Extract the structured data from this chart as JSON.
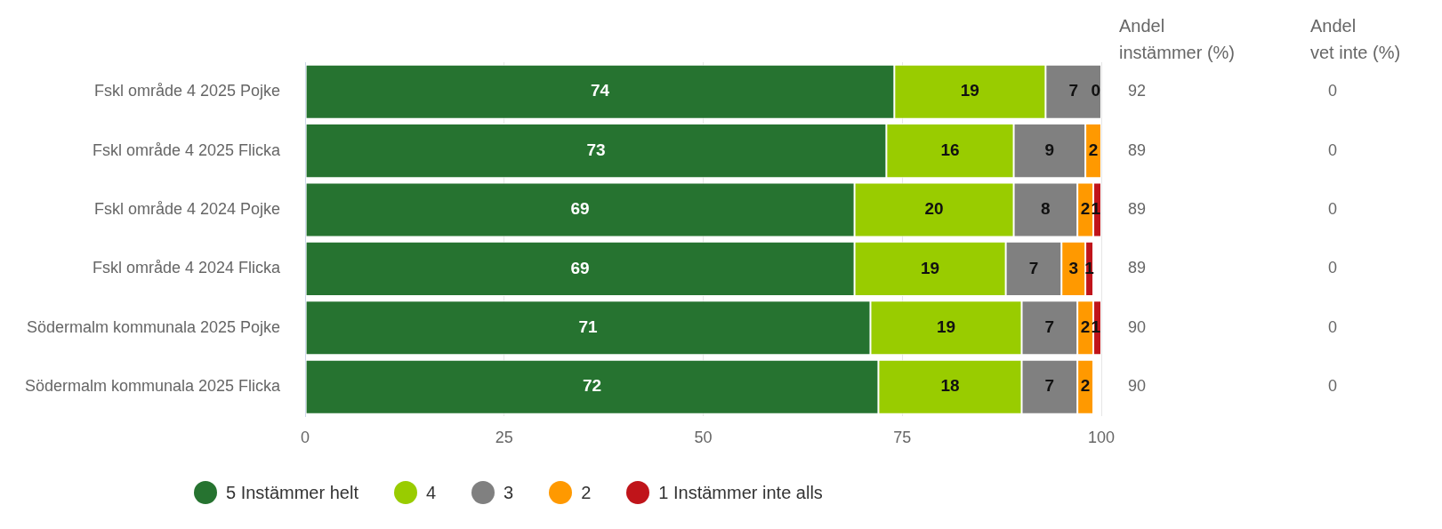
{
  "chart_data": {
    "type": "bar",
    "orientation": "horizontal",
    "stacked": true,
    "grid": "x",
    "legend": "bottom",
    "categories": [
      "Fskl område 4 2025 Pojke",
      "Fskl område 4 2025 Flicka",
      "Fskl område 4 2024 Pojke",
      "Fskl område 4 2024 Flicka",
      "Södermalm kommunala 2025 Pojke",
      "Södermalm kommunala 2025 Flicka"
    ],
    "xlim": [
      0,
      100
    ],
    "xticks": [
      0,
      25,
      50,
      75,
      100
    ],
    "series": [
      {
        "name": "5 Instämmer helt",
        "color": "#267330",
        "values": [
          74,
          73,
          69,
          69,
          71,
          72
        ],
        "value_labels": [
          "74",
          "73",
          "69",
          "69",
          "71",
          "72"
        ]
      },
      {
        "name": "4",
        "color": "#99cc00",
        "values": [
          19,
          16,
          20,
          19,
          19,
          18
        ],
        "value_labels": [
          "19",
          "16",
          "20",
          "19",
          "19",
          "18"
        ]
      },
      {
        "name": "3",
        "color": "#808080",
        "values": [
          7,
          9,
          8,
          7,
          7,
          7
        ],
        "value_labels": [
          "7",
          "9",
          "8",
          "7",
          "7",
          "7"
        ]
      },
      {
        "name": "2",
        "color": "#ff9900",
        "values": [
          0,
          2,
          2,
          3,
          2,
          2
        ],
        "value_labels": [
          "0",
          "2",
          "2",
          "3",
          "2",
          "2"
        ]
      },
      {
        "name": "1 Instämmer inte alls",
        "color": "#c0141a",
        "values": [
          0,
          0,
          1,
          1,
          1,
          0
        ],
        "value_labels": [
          null,
          null,
          "1",
          "1",
          "1",
          null
        ]
      }
    ],
    "annotations": [
      "Andel instämmer (%)",
      "92",
      "89",
      "89",
      "89",
      "90",
      "90",
      "Andel vet inte (%)",
      "0",
      "0",
      "0",
      "0",
      "0",
      "0"
    ]
  }
}
